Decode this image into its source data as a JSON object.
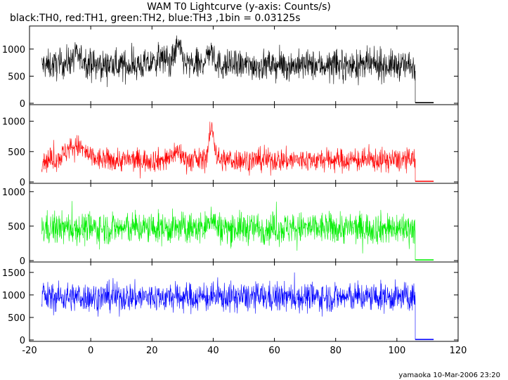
{
  "title": "WAM T0 Lightcurve (y-axis: Counts/s)",
  "subtitle": "black:TH0, red:TH1, green:TH2, blue:TH3 ,1bin = 0.03125s",
  "footer": "yamaoka 10-Mar-2006 23:20",
  "chart_data": {
    "type": "line",
    "xlim": [
      -20,
      120
    ],
    "x_ticks": [
      -20,
      0,
      20,
      40,
      60,
      80,
      100,
      120
    ],
    "x_tick_labels": [
      "-20",
      "0",
      "20",
      "40",
      "60",
      "80",
      "100",
      "120"
    ],
    "bin_seconds": 0.03125,
    "data_range": [
      -16,
      106
    ],
    "tail_range": [
      106,
      112
    ],
    "panels": [
      {
        "name": "TH0",
        "color": "#000000",
        "ylim": [
          0,
          1400
        ],
        "y_ticks": [
          0,
          500,
          1000
        ],
        "y_tick_labels": [
          "0",
          "500",
          "1000"
        ],
        "baseline": 700,
        "noise": 270,
        "tail_level": 10,
        "features": [
          {
            "x": -4.5,
            "amp": 150,
            "width": 2.5
          },
          {
            "x": 23,
            "amp": 120,
            "width": 2
          },
          {
            "x": 28.5,
            "amp": 330,
            "width": 1.2
          },
          {
            "x": 39,
            "amp": 260,
            "width": 1.2
          }
        ]
      },
      {
        "name": "TH1",
        "color": "#ff0000",
        "ylim": [
          0,
          1250
        ],
        "y_ticks": [
          0,
          500,
          1000
        ],
        "y_tick_labels": [
          "0",
          "500",
          "1000"
        ],
        "baseline": 360,
        "noise": 190,
        "tail_level": 10,
        "features": [
          {
            "x": -5,
            "amp": 230,
            "width": 3
          },
          {
            "x": 28,
            "amp": 140,
            "width": 1.5
          },
          {
            "x": 39.5,
            "amp": 500,
            "width": 0.9
          }
        ]
      },
      {
        "name": "TH2",
        "color": "#00ee00",
        "ylim": [
          0,
          1100
        ],
        "y_ticks": [
          0,
          500,
          1000
        ],
        "y_tick_labels": [
          "0",
          "500",
          "1000"
        ],
        "baseline": 470,
        "noise": 230,
        "tail_level": 10,
        "features": [
          {
            "x": 39.5,
            "amp": 180,
            "width": 0.8
          }
        ]
      },
      {
        "name": "TH3",
        "color": "#0000ff",
        "ylim": [
          0,
          1700
        ],
        "y_ticks": [
          0,
          500,
          1000,
          1500
        ],
        "y_tick_labels": [
          "0",
          "500",
          "1000",
          "1500"
        ],
        "baseline": 950,
        "noise": 320,
        "tail_level": 10,
        "features": []
      }
    ]
  }
}
